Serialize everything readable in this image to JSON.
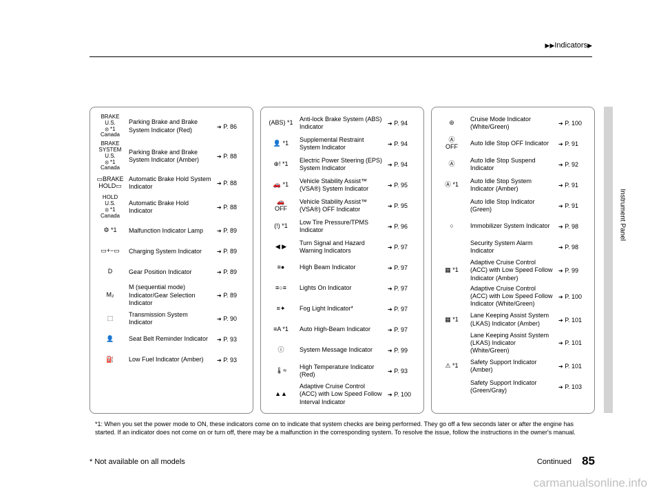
{
  "header": {
    "arrows": "▶▶",
    "title": "Indicators",
    "arrow2": "▶"
  },
  "col1": [
    {
      "icon": "BRAKE\nU.S.\n⦻ *1\nCanada",
      "desc": "Parking Brake and Brake System Indicator (Red)",
      "page": "P. 86"
    },
    {
      "icon": "BRAKE\nSYSTEM\nU.S.\n⦻ *1\nCanada",
      "desc": "Parking Brake and Brake System Indicator (Amber)",
      "page": "P. 88"
    },
    {
      "icon": "▭BRAKE\nHOLD▭",
      "desc": "Automatic Brake Hold System Indicator",
      "page": "P. 88"
    },
    {
      "icon": "HOLD\nU.S.\n⦻ *1\nCanada",
      "desc": "Automatic Brake Hold Indicator",
      "page": "P. 88"
    },
    {
      "icon": "⚙ *1",
      "desc": "Malfunction Indicator Lamp",
      "page": "P. 89"
    },
    {
      "icon": "▭+−▭",
      "desc": "Charging System Indicator",
      "page": "P. 89"
    },
    {
      "icon": "D",
      "desc": "Gear Position Indicator",
      "page": "P. 89"
    },
    {
      "icon": "M₂",
      "desc": "M (sequential mode) Indicator/Gear Selection Indicator",
      "page": "P. 89"
    },
    {
      "icon": "⬚",
      "desc": "Transmission System Indicator",
      "page": "P. 90"
    },
    {
      "icon": "👤",
      "desc": "Seat Belt Reminder Indicator",
      "page": "P. 93"
    },
    {
      "icon": "⛽",
      "desc": "Low Fuel Indicator (Amber)",
      "page": "P. 93"
    }
  ],
  "col2": [
    {
      "icon": "(ABS) *1",
      "desc": "Anti-lock Brake System (ABS) Indicator",
      "page": "P. 94"
    },
    {
      "icon": "👤 *1",
      "desc": "Supplemental Restraint System Indicator",
      "page": "P. 94"
    },
    {
      "icon": "⊕! *1",
      "desc": "Electric Power Steering (EPS) System Indicator",
      "page": "P. 94"
    },
    {
      "icon": "🚗 *1",
      "desc": "Vehicle Stability Assist™ (VSA®) System Indicator",
      "page": "P. 95"
    },
    {
      "icon": "🚗\nOFF",
      "desc": "Vehicle Stability Assist™ (VSA®) OFF Indicator",
      "page": "P. 95"
    },
    {
      "icon": "(!) *1",
      "desc": "Low Tire Pressure/TPMS Indicator",
      "page": "P. 96"
    },
    {
      "icon": "◀ ▶",
      "desc": "Turn Signal and Hazard Warning Indicators",
      "page": "P. 97"
    },
    {
      "icon": "≡●",
      "desc": "High Beam Indicator",
      "page": "P. 97"
    },
    {
      "icon": "≡○≡",
      "desc": "Lights On Indicator",
      "page": "P. 97"
    },
    {
      "icon": "≡✦",
      "desc": "Fog Light Indicator*",
      "page": "P. 97"
    },
    {
      "icon": "≡A *1",
      "desc": "Auto High-Beam Indicator",
      "page": "P. 97"
    },
    {
      "icon": "ⓘ",
      "desc": "System Message Indicator",
      "page": "P. 99"
    },
    {
      "icon": "🌡≈",
      "desc": "High Temperature Indicator (Red)",
      "page": "P. 93"
    },
    {
      "icon": "▲▲",
      "desc": "Adaptive Cruise Control (ACC) with Low Speed Follow Interval Indicator",
      "page": "P. 100"
    }
  ],
  "col3": [
    {
      "icon": "⊚",
      "desc": "Cruise Mode Indicator (White/Green)",
      "page": "P. 100"
    },
    {
      "icon": "Ⓐ\nOFF",
      "desc": "Auto Idle Stop OFF Indicator",
      "page": "P. 91"
    },
    {
      "icon": "Ⓐ",
      "desc": "Auto Idle Stop Suspend Indicator",
      "page": "P. 92"
    },
    {
      "icon": "Ⓐ *1",
      "desc": "Auto Idle Stop System Indicator (Amber)",
      "page": "P. 91"
    },
    {
      "icon": "",
      "desc": "Auto Idle Stop Indicator (Green)",
      "page": "P. 91"
    },
    {
      "icon": "○",
      "desc": "Immobilizer System Indicator",
      "page": "P. 98"
    },
    {
      "icon": "",
      "desc": "Security System Alarm Indicator",
      "page": "P. 98"
    },
    {
      "icon": "▦ *1",
      "desc": "Adaptive Cruise Control (ACC) with Low Speed Follow Indicator (Amber)",
      "page": "P. 99"
    },
    {
      "icon": "",
      "desc": "Adaptive Cruise Control (ACC) with Low Speed Follow Indicator (White/Green)",
      "page": "P. 100"
    },
    {
      "icon": "▦ *1",
      "desc": "Lane Keeping Assist System (LKAS) Indicator (Amber)",
      "page": "P. 101"
    },
    {
      "icon": "",
      "desc": "Lane Keeping Assist System (LKAS) Indicator (White/Green)",
      "page": "P. 101"
    },
    {
      "icon": "⚠ *1",
      "desc": "Safety Support Indicator (Amber)",
      "page": "P. 101"
    },
    {
      "icon": "",
      "desc": "Safety Support Indicator (Green/Gray)",
      "page": "P. 103"
    }
  ],
  "footnote": "*1: When you set the power mode to ON, these indicators come on to indicate that system checks are being performed. They go off a few seconds later or after the engine has started. If an indicator does not come on or turn off, there may be a malfunction in the corresponding system. To resolve the issue, follow the instructions in the owner's manual.",
  "not_available": "* Not available on all models",
  "continued": "Continued",
  "page_number": "85",
  "side_label": "Instrument Panel",
  "watermark": "carmanualsonline.info"
}
